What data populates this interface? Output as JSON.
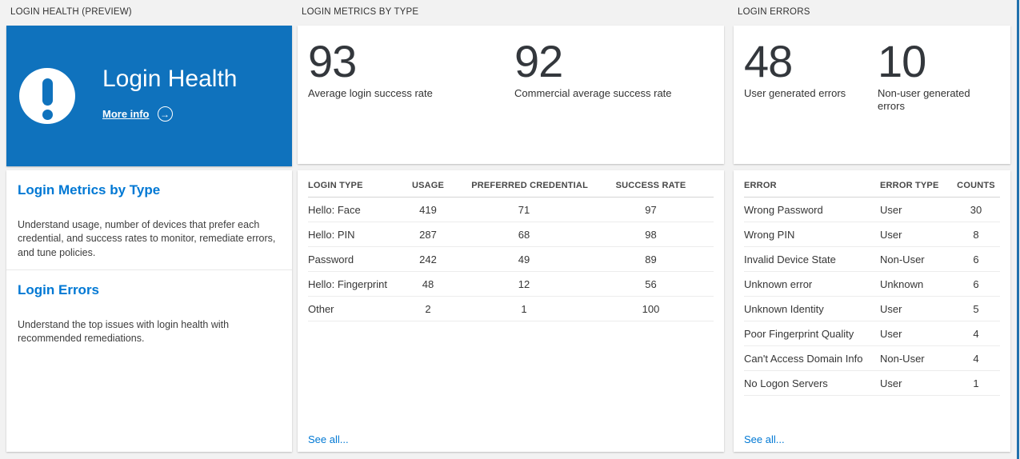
{
  "colors": {
    "page_bg": "#f2f2f2",
    "tile_blue": "#0f72bd",
    "link_blue": "#0078d4",
    "number_text": "#33373c",
    "edge_strip": "#2171ad"
  },
  "icons": {
    "alert": "!",
    "arrow_right": "→"
  },
  "panels": {
    "health": {
      "header": "LOGIN HEALTH (PREVIEW)",
      "tile": {
        "title": "Login Health",
        "more_info": "More info"
      },
      "sections": [
        {
          "title": "Login Metrics by Type",
          "description": "Understand usage, number of devices that prefer each credential, and success rates to monitor, remediate errors, and tune policies."
        },
        {
          "title": "Login Errors",
          "description": "Understand the top issues with login health with recommended remediations."
        }
      ]
    },
    "metrics": {
      "header": "LOGIN METRICS BY TYPE",
      "stats": [
        {
          "value": "93",
          "label": "Average login success rate"
        },
        {
          "value": "92",
          "label": "Commercial average success rate"
        }
      ],
      "table": {
        "columns": [
          "LOGIN TYPE",
          "USAGE",
          "PREFERRED CREDENTIAL",
          "SUCCESS RATE"
        ],
        "rows": [
          [
            "Hello: Face",
            "419",
            "71",
            "97"
          ],
          [
            "Hello: PIN",
            "287",
            "68",
            "98"
          ],
          [
            "Password",
            "242",
            "49",
            "89"
          ],
          [
            "Hello: Fingerprint",
            "48",
            "12",
            "56"
          ],
          [
            "Other",
            "2",
            "1",
            "100"
          ]
        ],
        "see_all": "See all..."
      }
    },
    "errors": {
      "header": "LOGIN ERRORS",
      "stats": [
        {
          "value": "48",
          "label": "User generated errors"
        },
        {
          "value": "10",
          "label": "Non-user generated errors"
        }
      ],
      "table": {
        "columns": [
          "ERROR",
          "ERROR TYPE",
          "COUNTS"
        ],
        "rows": [
          [
            "Wrong Password",
            "User",
            "30"
          ],
          [
            "Wrong PIN",
            "User",
            "8"
          ],
          [
            "Invalid Device State",
            "Non-User",
            "6"
          ],
          [
            "Unknown error",
            "Unknown",
            "6"
          ],
          [
            "Unknown Identity",
            "User",
            "5"
          ],
          [
            "Poor Fingerprint Quality",
            "User",
            "4"
          ],
          [
            "Can't Access Domain Info",
            "Non-User",
            "4"
          ],
          [
            "No Logon Servers",
            "User",
            "1"
          ]
        ],
        "see_all": "See all..."
      }
    }
  }
}
